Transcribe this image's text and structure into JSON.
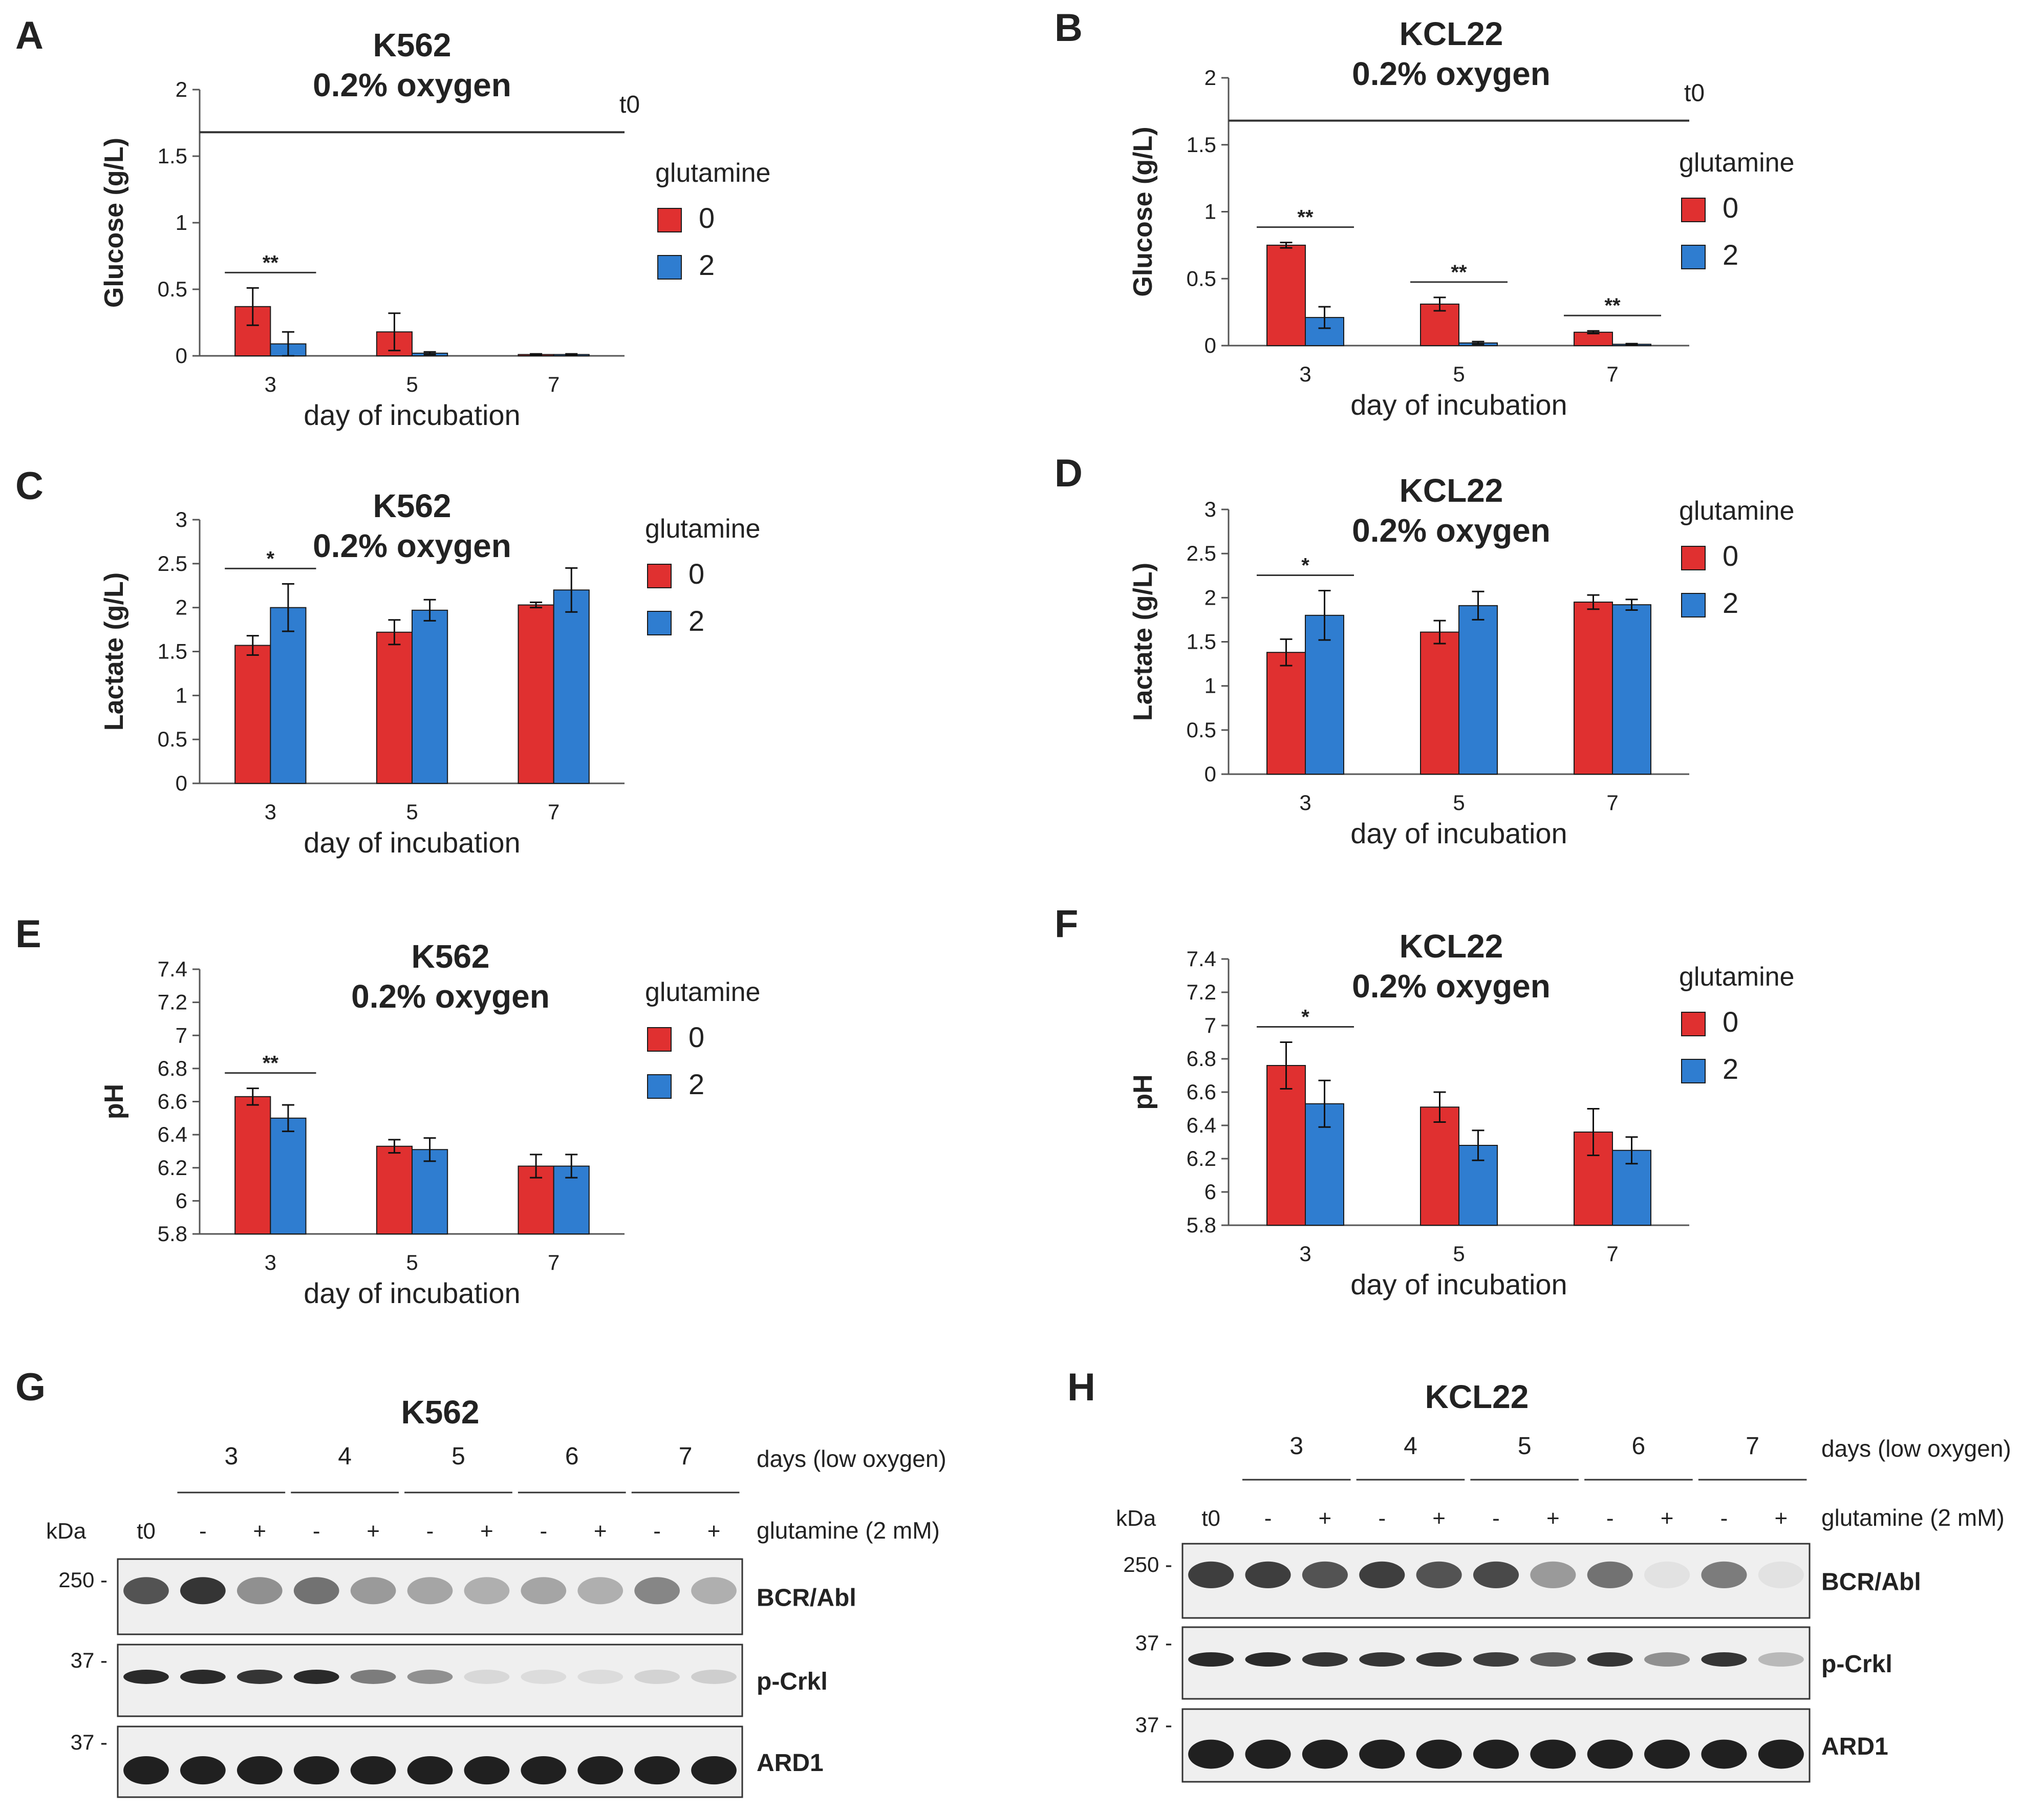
{
  "colors": {
    "red": "#e03030",
    "blue": "#2f7dd0",
    "axis": "#555555",
    "text": "#222222"
  },
  "legend": {
    "title": "glutamine",
    "entries": [
      "0",
      "2"
    ]
  },
  "x_label": "day of incubation",
  "chart_data": [
    {
      "id": "A",
      "letter": "A",
      "type": "bar",
      "title_line1": "K562",
      "title_line2": "0.2% oxygen",
      "ylabel": "Glucose (g/L)",
      "categories": [
        "3",
        "5",
        "7"
      ],
      "ylim": [
        0,
        2
      ],
      "yticks": [
        "0",
        "0.5",
        "1",
        "1.5",
        "2"
      ],
      "ytick_values": [
        0,
        0.5,
        1,
        1.5,
        2
      ],
      "series": [
        {
          "name": "0",
          "values": [
            0.37,
            0.18,
            0.01
          ],
          "errors": [
            0.14,
            0.14,
            0.005
          ]
        },
        {
          "name": "2",
          "values": [
            0.09,
            0.02,
            0.01
          ],
          "errors": [
            0.09,
            0.01,
            0.005
          ]
        }
      ],
      "significance": [
        {
          "category": "3",
          "label": "**"
        }
      ],
      "reference_line": {
        "value": 1.68,
        "label": "t0"
      }
    },
    {
      "id": "B",
      "letter": "B",
      "type": "bar",
      "title_line1": "KCL22",
      "title_line2": "0.2% oxygen",
      "ylabel": "Glucose (g/L)",
      "categories": [
        "3",
        "5",
        "7"
      ],
      "ylim": [
        0,
        2
      ],
      "yticks": [
        "0",
        "0.5",
        "1",
        "1.5",
        "2"
      ],
      "ytick_values": [
        0,
        0.5,
        1,
        1.5,
        2
      ],
      "series": [
        {
          "name": "0",
          "values": [
            0.75,
            0.31,
            0.1
          ],
          "errors": [
            0.02,
            0.05,
            0.01
          ]
        },
        {
          "name": "2",
          "values": [
            0.21,
            0.02,
            0.01
          ],
          "errors": [
            0.08,
            0.01,
            0.005
          ]
        }
      ],
      "significance": [
        {
          "category": "3",
          "label": "**"
        },
        {
          "category": "5",
          "label": "**"
        },
        {
          "category": "7",
          "label": "**"
        }
      ],
      "reference_line": {
        "value": 1.68,
        "label": "t0"
      }
    },
    {
      "id": "C",
      "letter": "C",
      "type": "bar",
      "title_line1": "K562",
      "title_line2": "0.2% oxygen",
      "ylabel": "Lactate (g/L)",
      "categories": [
        "3",
        "5",
        "7"
      ],
      "ylim": [
        0,
        3
      ],
      "yticks": [
        "0",
        "0.5",
        "1",
        "1.5",
        "2",
        "2.5",
        "3"
      ],
      "ytick_values": [
        0,
        0.5,
        1,
        1.5,
        2,
        2.5,
        3
      ],
      "series": [
        {
          "name": "0",
          "values": [
            1.57,
            1.72,
            2.03
          ],
          "errors": [
            0.11,
            0.14,
            0.03
          ]
        },
        {
          "name": "2",
          "values": [
            2.0,
            1.97,
            2.2
          ],
          "errors": [
            0.27,
            0.12,
            0.25
          ]
        }
      ],
      "significance": [
        {
          "category": "3",
          "label": "*"
        }
      ]
    },
    {
      "id": "D",
      "letter": "D",
      "type": "bar",
      "title_line1": "KCL22",
      "title_line2": "0.2% oxygen",
      "ylabel": "Lactate (g/L)",
      "categories": [
        "3",
        "5",
        "7"
      ],
      "ylim": [
        0,
        3
      ],
      "yticks": [
        "0",
        "0.5",
        "1",
        "1.5",
        "2",
        "2.5",
        "3"
      ],
      "ytick_values": [
        0,
        0.5,
        1,
        1.5,
        2,
        2.5,
        3
      ],
      "series": [
        {
          "name": "0",
          "values": [
            1.38,
            1.61,
            1.95
          ],
          "errors": [
            0.15,
            0.13,
            0.08
          ]
        },
        {
          "name": "2",
          "values": [
            1.8,
            1.91,
            1.92
          ],
          "errors": [
            0.28,
            0.16,
            0.06
          ]
        }
      ],
      "significance": [
        {
          "category": "3",
          "label": "*"
        }
      ]
    },
    {
      "id": "E",
      "letter": "E",
      "type": "bar",
      "title_line1": "K562",
      "title_line2": "0.2% oxygen",
      "ylabel": "pH",
      "categories": [
        "3",
        "5",
        "7"
      ],
      "ylim": [
        5.8,
        7.4
      ],
      "yticks": [
        "5.8",
        "6",
        "6.2",
        "6.4",
        "6.6",
        "6.8",
        "7",
        "7.2",
        "7.4"
      ],
      "ytick_values": [
        5.8,
        6.0,
        6.2,
        6.4,
        6.6,
        6.8,
        7.0,
        7.2,
        7.4
      ],
      "series": [
        {
          "name": "0",
          "values": [
            6.63,
            6.33,
            6.21
          ],
          "errors": [
            0.05,
            0.04,
            0.07
          ]
        },
        {
          "name": "2",
          "values": [
            6.5,
            6.31,
            6.21
          ],
          "errors": [
            0.08,
            0.07,
            0.07
          ]
        }
      ],
      "significance": [
        {
          "category": "3",
          "label": "**"
        }
      ]
    },
    {
      "id": "F",
      "letter": "F",
      "type": "bar",
      "title_line1": "KCL22",
      "title_line2": "0.2% oxygen",
      "ylabel": "pH",
      "categories": [
        "3",
        "5",
        "7"
      ],
      "ylim": [
        5.8,
        7.4
      ],
      "yticks": [
        "5.8",
        "6",
        "6.2",
        "6.4",
        "6.6",
        "6.8",
        "7",
        "7.2",
        "7.4"
      ],
      "ytick_values": [
        5.8,
        6.0,
        6.2,
        6.4,
        6.6,
        6.8,
        7.0,
        7.2,
        7.4
      ],
      "series": [
        {
          "name": "0",
          "values": [
            6.76,
            6.51,
            6.36
          ],
          "errors": [
            0.14,
            0.09,
            0.14
          ]
        },
        {
          "name": "2",
          "values": [
            6.53,
            6.28,
            6.25
          ],
          "errors": [
            0.14,
            0.09,
            0.08
          ]
        }
      ],
      "significance": [
        {
          "category": "3",
          "label": "*"
        }
      ]
    }
  ],
  "blots": [
    {
      "id": "G",
      "letter": "G",
      "title": "K562",
      "days": [
        "3",
        "4",
        "5",
        "6",
        "7"
      ],
      "days_label": "days (low oxygen)",
      "glutamine_label": "glutamine (2 mM)",
      "kda_label": "kDa",
      "lanes": [
        "t0",
        "-",
        "+",
        "-",
        "+",
        "-",
        "+",
        "-",
        "+",
        "-",
        "+"
      ],
      "bands": [
        {
          "name": "BCR/Abl",
          "marker": "250 -",
          "intensity": [
            0.75,
            0.9,
            0.45,
            0.6,
            0.4,
            0.35,
            0.3,
            0.35,
            0.3,
            0.5,
            0.3
          ]
        },
        {
          "name": "p-Crkl",
          "marker": "37 -",
          "intensity": [
            0.95,
            0.95,
            0.9,
            0.95,
            0.55,
            0.45,
            0.1,
            0.08,
            0.08,
            0.12,
            0.15
          ]
        },
        {
          "name": "ARD1",
          "marker": "37 -",
          "intensity": [
            1,
            1,
            1,
            1,
            1,
            1,
            1,
            1,
            1,
            1,
            1
          ]
        }
      ]
    },
    {
      "id": "H",
      "letter": "H",
      "title": "KCL22",
      "days": [
        "3",
        "4",
        "5",
        "6",
        "7"
      ],
      "days_label": "days (low oxygen)",
      "glutamine_label": "glutamine (2 mM)",
      "kda_label": "kDa",
      "lanes": [
        "t0",
        "-",
        "+",
        "-",
        "+",
        "-",
        "+",
        "-",
        "+",
        "-",
        "+"
      ],
      "bands": [
        {
          "name": "BCR/Abl",
          "marker": "250 -",
          "intensity": [
            0.85,
            0.85,
            0.75,
            0.85,
            0.75,
            0.8,
            0.4,
            0.6,
            0.05,
            0.55,
            0.05
          ]
        },
        {
          "name": "p-Crkl",
          "marker": "37 -",
          "intensity": [
            0.95,
            0.95,
            0.9,
            0.9,
            0.9,
            0.85,
            0.7,
            0.9,
            0.45,
            0.9,
            0.25
          ]
        },
        {
          "name": "ARD1",
          "marker": "37 -",
          "intensity": [
            1,
            1,
            1,
            1,
            1,
            1,
            1,
            1,
            1,
            1,
            1
          ]
        }
      ]
    }
  ]
}
